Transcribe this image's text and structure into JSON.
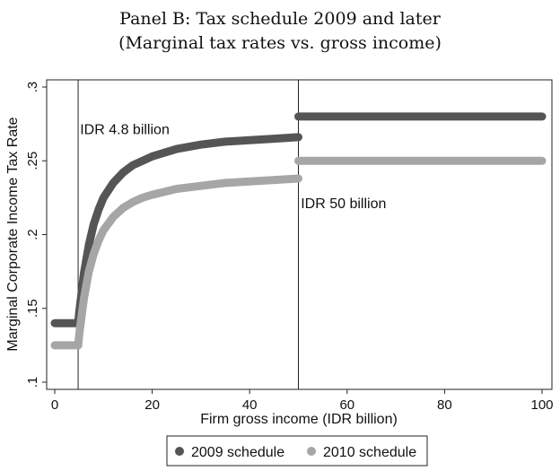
{
  "chart_data": {
    "type": "line",
    "title": "Panel B: Tax schedule 2009 and later",
    "subtitle": "(Marginal tax rates vs. gross income)",
    "xlabel": "Firm gross income (IDR billion)",
    "ylabel": "Marginal Corporate Income Tax Rate",
    "xlim": [
      0,
      100
    ],
    "ylim": [
      0.1,
      0.3
    ],
    "xticks": [
      0,
      20,
      40,
      60,
      80,
      100
    ],
    "yticks": [
      0.1,
      0.15,
      0.2,
      0.25,
      0.3
    ],
    "ytick_labels": [
      ".1",
      ".15",
      ".2",
      ".25",
      ".3"
    ],
    "grid": false,
    "legend_position": "bottom",
    "vlines": [
      4.8,
      50
    ],
    "annotations": [
      {
        "text": "IDR 4.8 billion",
        "x": 5.2,
        "y": 0.268
      },
      {
        "text": "IDR 50 billion",
        "x": 50.5,
        "y": 0.218
      }
    ],
    "series": [
      {
        "name": "2009 schedule",
        "color": "#555555",
        "segments": [
          {
            "x": [
              0,
              4.8
            ],
            "y": [
              0.14,
              0.14
            ]
          },
          {
            "x": [
              4.8,
              5,
              6,
              7,
              8,
              9,
              10,
              12,
              14,
              16,
              18,
              20,
              25,
              30,
              35,
              40,
              45,
              50
            ],
            "y": [
              0.14,
              0.147,
              0.174,
              0.193,
              0.207,
              0.217,
              0.225,
              0.235,
              0.242,
              0.247,
              0.25,
              0.253,
              0.258,
              0.261,
              0.263,
              0.264,
              0.265,
              0.266
            ]
          },
          {
            "x": [
              50,
              100
            ],
            "y": [
              0.28,
              0.28
            ]
          }
        ]
      },
      {
        "name": "2010 schedule",
        "color": "#a6a6a6",
        "segments": [
          {
            "x": [
              0,
              4.8
            ],
            "y": [
              0.125,
              0.125
            ]
          },
          {
            "x": [
              4.8,
              5,
              6,
              7,
              8,
              9,
              10,
              12,
              14,
              16,
              18,
              20,
              25,
              30,
              35,
              40,
              45,
              50
            ],
            "y": [
              0.125,
              0.132,
              0.157,
              0.175,
              0.187,
              0.196,
              0.203,
              0.212,
              0.218,
              0.222,
              0.225,
              0.227,
              0.231,
              0.233,
              0.235,
              0.236,
              0.237,
              0.238
            ]
          },
          {
            "x": [
              50,
              100
            ],
            "y": [
              0.25,
              0.25
            ]
          }
        ]
      }
    ]
  }
}
